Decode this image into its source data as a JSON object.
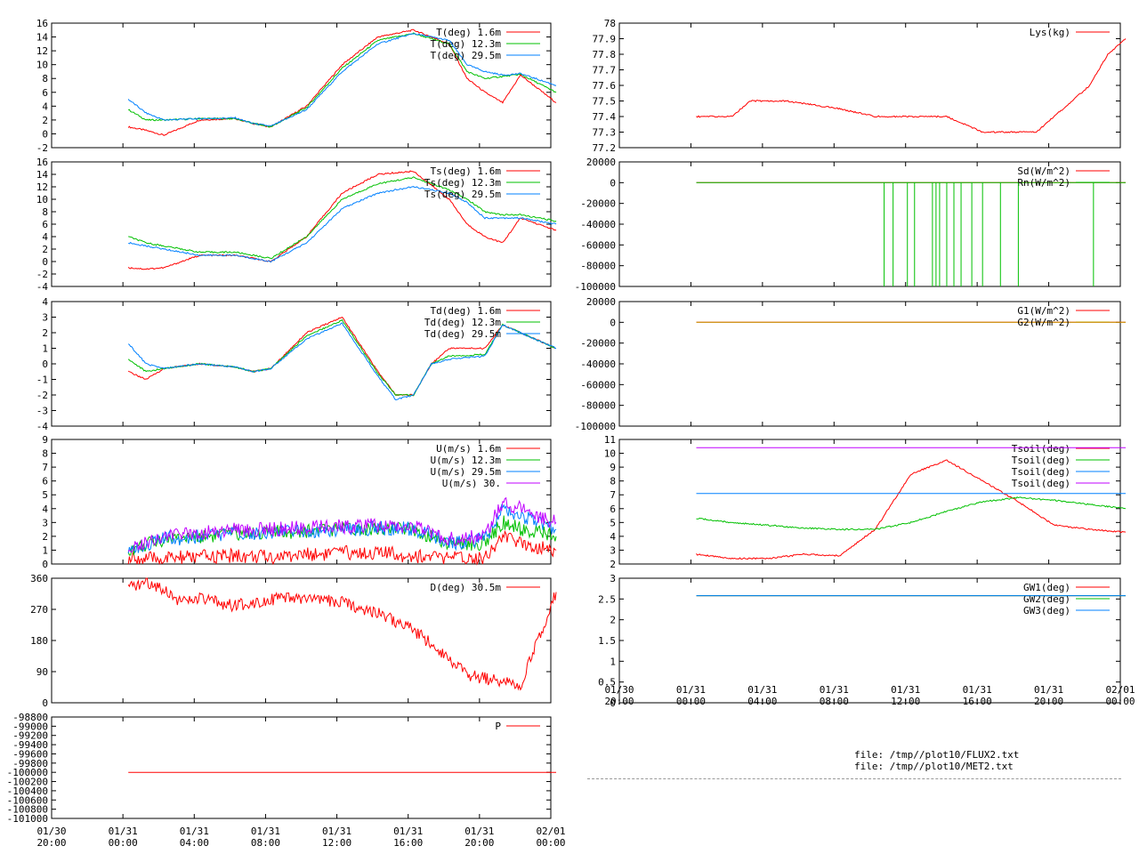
{
  "page": {
    "files": [
      "file: /tmp//plot10/FLUX2.txt",
      "file: /tmp//plot10/MET2.txt"
    ]
  },
  "time_axis": {
    "left_ticks": [
      "01/30 20:00",
      "01/31 00:00",
      "01/31 04:00",
      "01/31 08:00",
      "01/31 12:00",
      "01/31 16:00",
      "01/31 20:00",
      "02/01 00:00"
    ],
    "right_ticks": [
      "01/30 20:00",
      "01/31 00:00",
      "01/31 04:00",
      "01/31 08:00",
      "01/31 12:00",
      "01/31 16:00",
      "01/31 20:00",
      "02/01 00:00"
    ]
  },
  "colors": {
    "red": "#ff0000",
    "green": "#00c000",
    "blue": "#0080ff",
    "purple": "#c000ff",
    "olive": "#c0a000"
  },
  "chart_data": [
    {
      "type": "line",
      "panel": "left-1",
      "ylim": [
        -2,
        16
      ],
      "yticks": [
        "-2",
        "0",
        "2",
        "4",
        "6",
        "8",
        "10",
        "12",
        "14",
        "16"
      ],
      "series": [
        {
          "name": "T(deg)  1.6m",
          "color": "red",
          "x": [
            0,
            1,
            2,
            4,
            6,
            7,
            8,
            10,
            12,
            14,
            16,
            18,
            19,
            20,
            21,
            22,
            24
          ],
          "y": [
            1,
            0.5,
            -0.2,
            2,
            2.2,
            1.5,
            1,
            4,
            10,
            14,
            15,
            13,
            8,
            6,
            4.5,
            8.5,
            4.5
          ]
        },
        {
          "name": "T(deg) 12.3m",
          "color": "green",
          "x": [
            0,
            1,
            2,
            4,
            6,
            7,
            8,
            10,
            12,
            14,
            16,
            18,
            19,
            20,
            21,
            22,
            24
          ],
          "y": [
            3.5,
            2,
            2,
            2.2,
            2.2,
            1.5,
            1,
            3.8,
            9.5,
            13.5,
            14.5,
            13,
            9,
            8,
            8.3,
            8.6,
            6
          ]
        },
        {
          "name": "T(deg) 29.5m",
          "color": "blue",
          "x": [
            0,
            1,
            2,
            4,
            6,
            7,
            8,
            10,
            12,
            14,
            16,
            18,
            19,
            20,
            21,
            22,
            24
          ],
          "y": [
            5,
            3,
            2,
            2.2,
            2.3,
            1.5,
            1.1,
            3.5,
            9,
            13,
            14.5,
            13.5,
            10,
            9,
            8.5,
            8.7,
            7
          ]
        }
      ]
    },
    {
      "type": "line",
      "panel": "left-2",
      "ylim": [
        -4,
        16
      ],
      "yticks": [
        "-4",
        "-2",
        "0",
        "2",
        "4",
        "6",
        "8",
        "10",
        "12",
        "14",
        "16"
      ],
      "series": [
        {
          "name": "Ts(deg)  1.6m",
          "color": "red",
          "x": [
            0,
            1,
            2,
            4,
            6,
            7,
            8,
            10,
            12,
            14,
            16,
            18,
            19,
            20,
            21,
            22,
            24
          ],
          "y": [
            -1,
            -1.2,
            -1,
            1,
            1,
            0.5,
            0,
            4,
            11,
            14,
            14.5,
            10,
            6,
            4,
            3,
            7,
            5
          ]
        },
        {
          "name": "Ts(deg) 12.3m",
          "color": "green",
          "x": [
            0,
            1,
            2,
            4,
            6,
            7,
            8,
            10,
            12,
            14,
            16,
            18,
            19,
            20,
            21,
            22,
            24
          ],
          "y": [
            4,
            3,
            2.5,
            1.5,
            1.5,
            1,
            0.5,
            4,
            10,
            12.5,
            13.5,
            11.5,
            10,
            8,
            7.5,
            7.5,
            6.5
          ]
        },
        {
          "name": "Ts(deg) 29.5m",
          "color": "blue",
          "x": [
            0,
            1,
            2,
            4,
            6,
            7,
            8,
            10,
            12,
            14,
            16,
            18,
            19,
            20,
            21,
            22,
            24
          ],
          "y": [
            3,
            2.5,
            2,
            1,
            1,
            0.5,
            0,
            3,
            8.5,
            11,
            12,
            11,
            9.5,
            7,
            7,
            7,
            6
          ]
        }
      ]
    },
    {
      "type": "line",
      "panel": "left-3",
      "ylim": [
        -4,
        4
      ],
      "yticks": [
        "-4",
        "-3",
        "-2",
        "-1",
        "0",
        "1",
        "2",
        "3",
        "4"
      ],
      "series": [
        {
          "name": "Td(deg)  1.6m",
          "color": "red",
          "x": [
            0,
            1,
            2,
            4,
            6,
            7,
            8,
            10,
            12,
            14,
            15,
            16,
            17,
            18,
            20,
            21,
            22,
            24
          ],
          "y": [
            -0.5,
            -1,
            -0.3,
            0,
            -0.2,
            -0.5,
            -0.3,
            2,
            3,
            -0.5,
            -2,
            -2,
            0,
            1,
            1,
            2.5,
            2,
            1
          ]
        },
        {
          "name": "Td(deg) 12.3m",
          "color": "green",
          "x": [
            0,
            1,
            2,
            4,
            6,
            7,
            8,
            10,
            12,
            14,
            15,
            16,
            17,
            18,
            20,
            21,
            22,
            24
          ],
          "y": [
            0.3,
            -0.5,
            -0.3,
            0,
            -0.2,
            -0.5,
            -0.3,
            1.8,
            2.8,
            -0.6,
            -2,
            -2,
            0,
            0.5,
            0.6,
            2.5,
            2,
            1
          ]
        },
        {
          "name": "Td(deg) 29.5m",
          "color": "blue",
          "x": [
            0,
            1,
            2,
            4,
            6,
            7,
            8,
            10,
            12,
            14,
            15,
            16,
            17,
            18,
            20,
            21,
            22,
            24
          ],
          "y": [
            1.3,
            0,
            -0.3,
            0,
            -0.2,
            -0.5,
            -0.3,
            1.6,
            2.6,
            -0.8,
            -2.3,
            -2,
            0,
            0.3,
            0.5,
            2.5,
            2,
            1
          ]
        }
      ]
    },
    {
      "type": "line",
      "panel": "left-4",
      "ylim": [
        0,
        9
      ],
      "yticks": [
        "0",
        "1",
        "2",
        "3",
        "4",
        "5",
        "6",
        "7",
        "8",
        "9"
      ],
      "series": [
        {
          "name": "U(m/s)  1.6m",
          "color": "red",
          "x": [
            0,
            2,
            4,
            6,
            8,
            10,
            12,
            14,
            16,
            18,
            20,
            21,
            22,
            24
          ],
          "y": [
            0.3,
            0.4,
            0.5,
            0.6,
            0.5,
            0.7,
            0.8,
            0.8,
            0.6,
            0.4,
            0.5,
            2,
            1.5,
            1
          ]
        },
        {
          "name": "U(m/s) 12.3m",
          "color": "green",
          "x": [
            0,
            2,
            4,
            6,
            8,
            10,
            12,
            14,
            16,
            18,
            20,
            21,
            22,
            24
          ],
          "y": [
            1,
            1.8,
            2,
            2.2,
            2.3,
            2.4,
            2.5,
            2.6,
            2.5,
            1.5,
            1.5,
            3,
            2.5,
            2
          ]
        },
        {
          "name": "U(m/s) 29.5m",
          "color": "blue",
          "x": [
            0,
            2,
            4,
            6,
            8,
            10,
            12,
            14,
            16,
            18,
            20,
            21,
            22,
            24
          ],
          "y": [
            1,
            1.8,
            2,
            2.2,
            2.3,
            2.4,
            2.5,
            2.6,
            2.5,
            1.5,
            1.8,
            4,
            3.5,
            2.5
          ]
        },
        {
          "name": "U(m/s) 30.",
          "color": "purple",
          "x": [
            0,
            2,
            4,
            6,
            8,
            10,
            12,
            14,
            16,
            18,
            20,
            21,
            22,
            24
          ],
          "y": [
            1.2,
            2,
            2.3,
            2.5,
            2.5,
            2.6,
            2.7,
            2.8,
            2.7,
            1.8,
            2,
            4.5,
            4,
            3
          ]
        }
      ]
    },
    {
      "type": "line",
      "panel": "left-5",
      "ylim": [
        0,
        360
      ],
      "yticks": [
        "0",
        "90",
        "180",
        "270",
        "360"
      ],
      "series": [
        {
          "name": "D(deg)  30.5m",
          "color": "red",
          "x": [
            0,
            1,
            2,
            3,
            4,
            6,
            8,
            10,
            12,
            14,
            16,
            18,
            19,
            20,
            21,
            22,
            24
          ],
          "y": [
            330,
            350,
            330,
            290,
            300,
            280,
            300,
            300,
            290,
            260,
            210,
            130,
            80,
            70,
            60,
            50,
            320
          ]
        }
      ]
    },
    {
      "type": "line",
      "panel": "left-6",
      "ylim": [
        -101000,
        -98800
      ],
      "yticks": [
        "-101000",
        "-100800",
        "-100600",
        "-100400",
        "-100200",
        "-100000",
        "-99800",
        "-99600",
        "-99400",
        "-99200",
        "-99000",
        "-98800"
      ],
      "series": [
        {
          "name": "P",
          "color": "red",
          "x": [
            0,
            24
          ],
          "y": [
            -100000,
            -100000
          ]
        }
      ]
    },
    {
      "type": "line",
      "panel": "right-1",
      "ylim": [
        77.2,
        78
      ],
      "yticks": [
        "77.2",
        "77.3",
        "77.4",
        "77.5",
        "77.6",
        "77.7",
        "77.8",
        "77.9",
        "78"
      ],
      "series": [
        {
          "name": "Lys(kg)",
          "color": "red",
          "x": [
            0,
            2,
            3,
            5,
            8,
            10,
            12,
            14,
            16,
            18,
            19,
            20,
            21,
            22,
            23,
            24
          ],
          "y": [
            77.4,
            77.4,
            77.5,
            77.5,
            77.45,
            77.4,
            77.4,
            77.4,
            77.3,
            77.3,
            77.3,
            77.4,
            77.5,
            77.6,
            77.8,
            77.9
          ]
        }
      ]
    },
    {
      "type": "line",
      "panel": "right-2",
      "ylim": [
        -100000,
        20000
      ],
      "yticks": [
        "-100000",
        "-80000",
        "-60000",
        "-40000",
        "-20000",
        "0",
        "20000"
      ],
      "series": [
        {
          "name": "Sd(W/m^2)",
          "color": "red",
          "x": [
            0,
            24
          ],
          "y": [
            0,
            0
          ]
        },
        {
          "name": "Rn(W/m^2)",
          "color": "green",
          "x": [
            0,
            24
          ],
          "y": [
            0,
            0
          ]
        }
      ]
    },
    {
      "type": "line",
      "panel": "right-3",
      "ylim": [
        -100000,
        20000
      ],
      "yticks": [
        "-100000",
        "-80000",
        "-60000",
        "-40000",
        "-20000",
        "0",
        "20000"
      ],
      "series": [
        {
          "name": "G1(W/m^2)",
          "color": "red",
          "x": [
            0,
            24
          ],
          "y": [
            0,
            0
          ]
        },
        {
          "name": "G2(W/m^2)",
          "color": "olive",
          "x": [
            0,
            24
          ],
          "y": [
            0,
            0
          ]
        }
      ]
    },
    {
      "type": "line",
      "panel": "right-4",
      "ylim": [
        2,
        11
      ],
      "yticks": [
        "2",
        "3",
        "4",
        "5",
        "6",
        "7",
        "8",
        "9",
        "10",
        "11"
      ],
      "series": [
        {
          "name": "Tsoil(deg)",
          "color": "red",
          "x": [
            0,
            2,
            4,
            6,
            8,
            10,
            12,
            14,
            16,
            18,
            20,
            22,
            24
          ],
          "y": [
            2.7,
            2.4,
            2.4,
            2.7,
            2.6,
            4.5,
            8.5,
            9.5,
            8,
            6.5,
            4.8,
            4.5,
            4.3
          ]
        },
        {
          "name": "Tsoil(deg)",
          "color": "green",
          "x": [
            0,
            2,
            4,
            6,
            8,
            10,
            12,
            14,
            16,
            18,
            20,
            22,
            24
          ],
          "y": [
            5.3,
            5,
            4.8,
            4.6,
            4.5,
            4.5,
            5,
            5.8,
            6.5,
            6.8,
            6.6,
            6.3,
            6
          ]
        },
        {
          "name": "Tsoil(deg)",
          "color": "blue",
          "x": [
            0,
            24
          ],
          "y": [
            7.1,
            7.1
          ]
        },
        {
          "name": "Tsoil(deg)",
          "color": "purple",
          "x": [
            0,
            24
          ],
          "y": [
            10.4,
            10.4
          ]
        }
      ]
    },
    {
      "type": "line",
      "panel": "right-5",
      "ylim": [
        0,
        3
      ],
      "yticks": [
        "0",
        "0.5",
        "1",
        "1.5",
        "2",
        "2.5",
        "3"
      ],
      "series": [
        {
          "name": "GW1(deg)",
          "color": "red",
          "x": [
            0,
            24
          ],
          "y": [
            2.58,
            2.58
          ]
        },
        {
          "name": "GW2(deg)",
          "color": "green",
          "x": [
            0,
            24
          ],
          "y": [
            2.58,
            2.58
          ]
        },
        {
          "name": "GW3(deg)",
          "color": "blue",
          "x": [
            0,
            24
          ],
          "y": [
            2.58,
            2.58
          ]
        }
      ]
    }
  ]
}
